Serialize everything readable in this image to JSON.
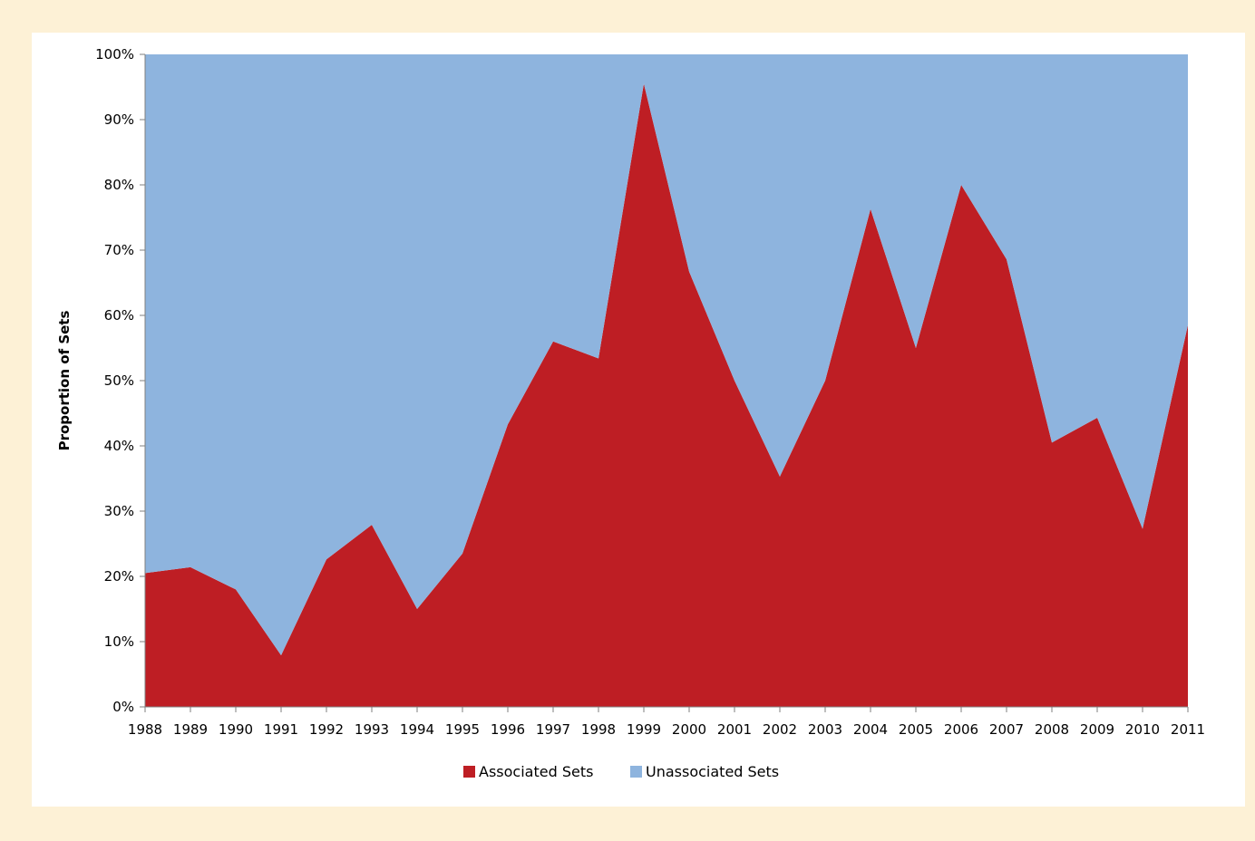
{
  "chart_data": {
    "type": "area",
    "stacked": "percent",
    "categories": [
      "1988",
      "1989",
      "1990",
      "1991",
      "1992",
      "1993",
      "1994",
      "1995",
      "1996",
      "1997",
      "1998",
      "1999",
      "2000",
      "2001",
      "2002",
      "2003",
      "2004",
      "2005",
      "2006",
      "2007",
      "2008",
      "2009",
      "2010",
      "2011"
    ],
    "series": [
      {
        "name": "Associated Sets",
        "color": "#be1e24",
        "values": [
          20.5,
          21.4,
          18.0,
          7.9,
          22.6,
          27.9,
          15.0,
          23.5,
          43.3,
          56.0,
          53.4,
          95.5,
          66.7,
          50.0,
          35.3,
          50.0,
          76.3,
          55.0,
          80.0,
          68.6,
          40.5,
          44.3,
          27.3,
          58.5
        ]
      },
      {
        "name": "Unassociated Sets",
        "color": "#8eb4de",
        "values": [
          79.5,
          78.6,
          82.0,
          92.1,
          77.4,
          72.1,
          85.0,
          76.5,
          56.7,
          44.0,
          46.6,
          4.5,
          33.3,
          50.0,
          64.7,
          50.0,
          23.7,
          45.0,
          20.0,
          31.4,
          59.5,
          55.7,
          72.7,
          41.5
        ]
      }
    ],
    "ylabel": "Proportion of Sets",
    "xlabel": "",
    "ylim": [
      0,
      100
    ],
    "yticks": [
      "0%",
      "10%",
      "20%",
      "30%",
      "40%",
      "50%",
      "60%",
      "70%",
      "80%",
      "90%",
      "100%"
    ],
    "legend": "bottom",
    "grid": false
  }
}
